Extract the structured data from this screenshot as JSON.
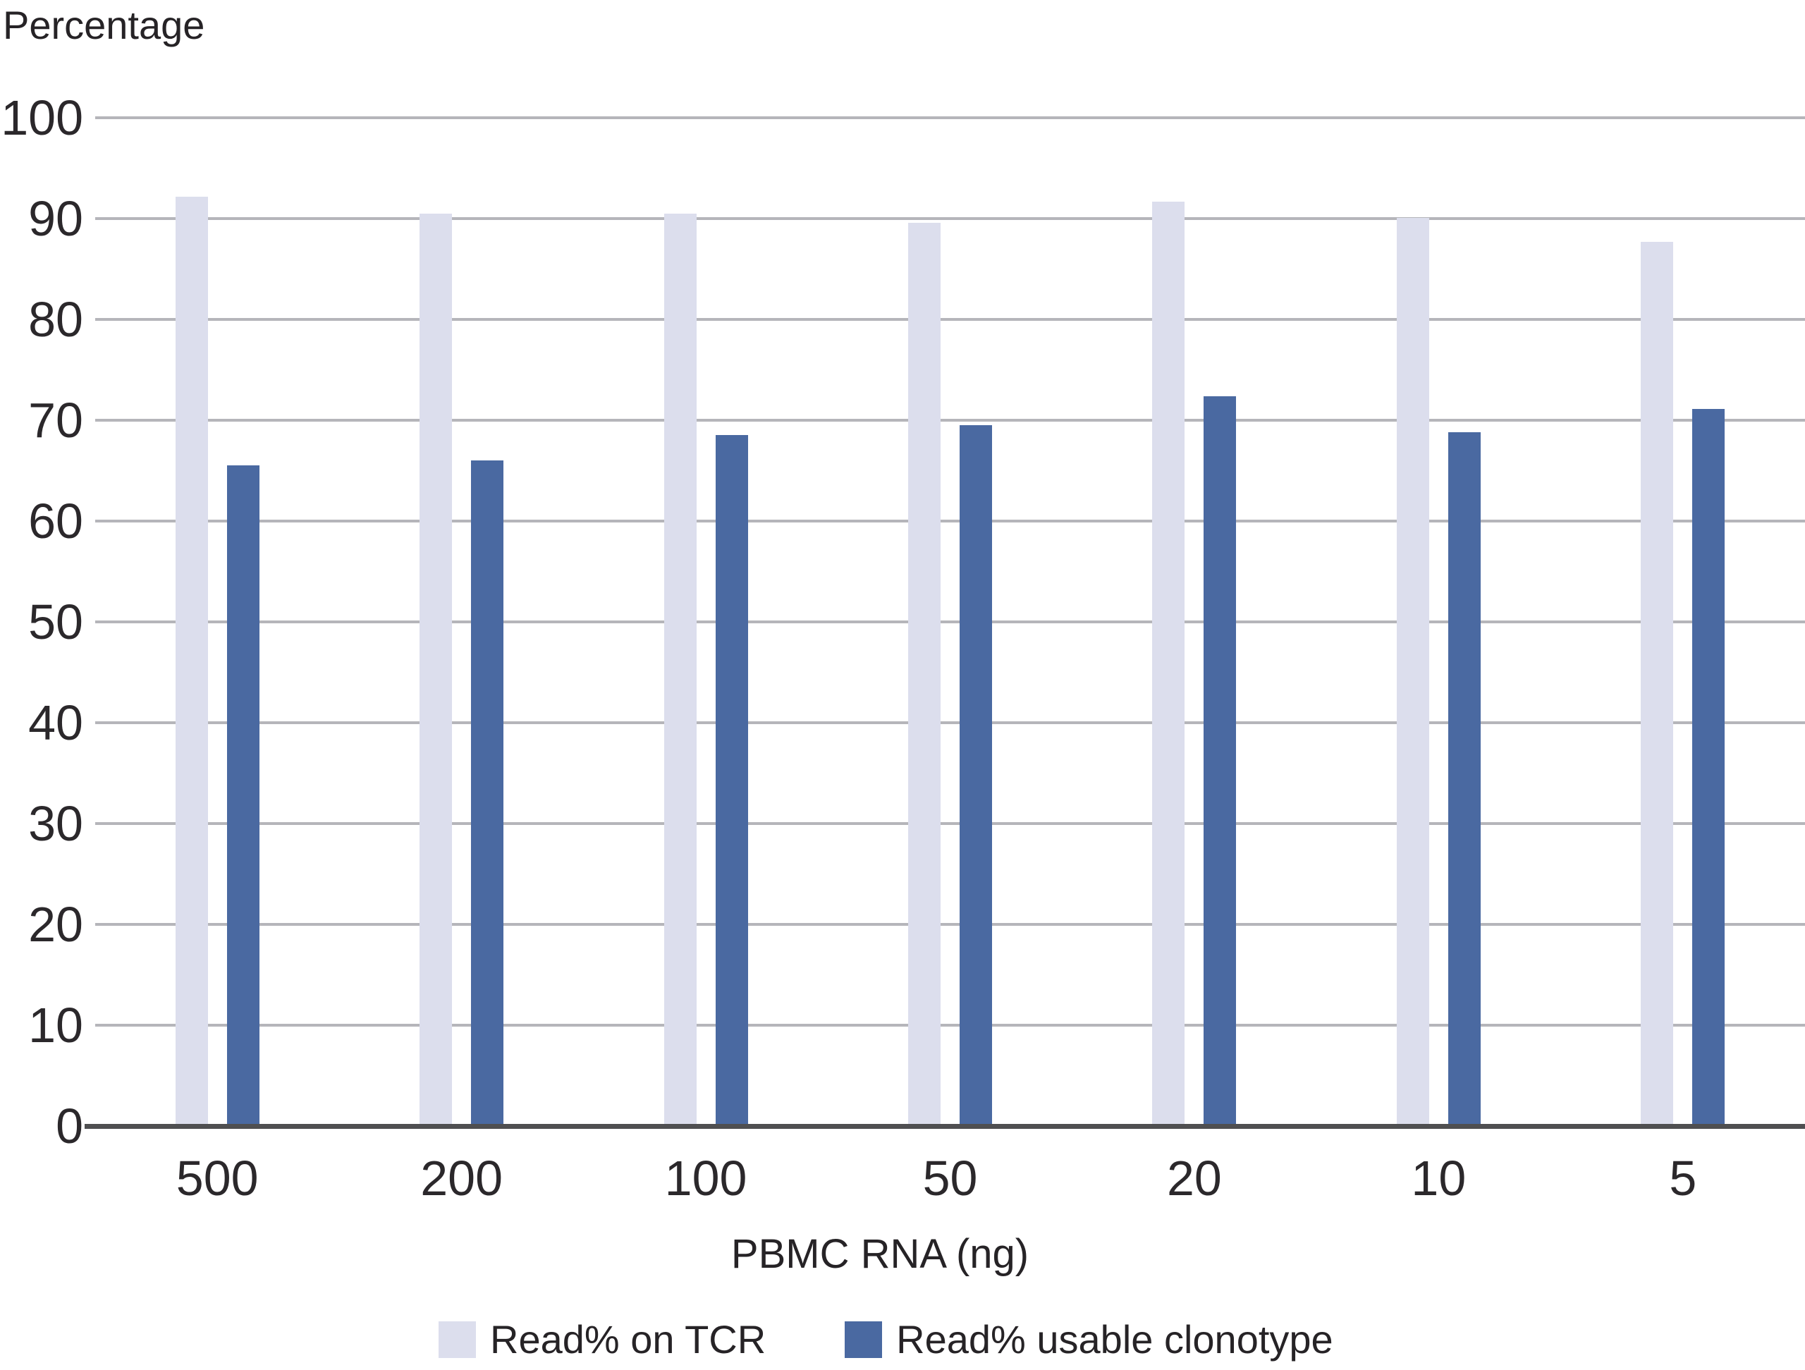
{
  "chart_data": {
    "type": "bar",
    "title": "Percentage",
    "ylabel": "Percentage",
    "xlabel": "PBMC RNA (ng)",
    "categories": [
      "500",
      "200",
      "100",
      "50",
      "20",
      "10",
      "5"
    ],
    "series": [
      {
        "name": "Read% on TCR",
        "color": "#dcdeed",
        "values": [
          92.2,
          90.5,
          90.5,
          89.6,
          91.7,
          90.1,
          87.7
        ]
      },
      {
        "name": "Read% usable clonotype",
        "color": "#4a69a1",
        "values": [
          65.5,
          66.0,
          68.5,
          69.5,
          72.4,
          68.8,
          71.1
        ]
      }
    ],
    "ylim": [
      0,
      100
    ],
    "yticks": [
      0,
      10,
      20,
      30,
      40,
      50,
      60,
      70,
      80,
      90,
      100
    ],
    "grid": true,
    "legend_position": "bottom"
  },
  "colors": {
    "background": "#ffffff",
    "gridline": "#b5b5ba",
    "axis_line": "#4f4f51",
    "text": "#262326",
    "series_light": "#dcdeed",
    "series_dark": "#4a69a1"
  }
}
